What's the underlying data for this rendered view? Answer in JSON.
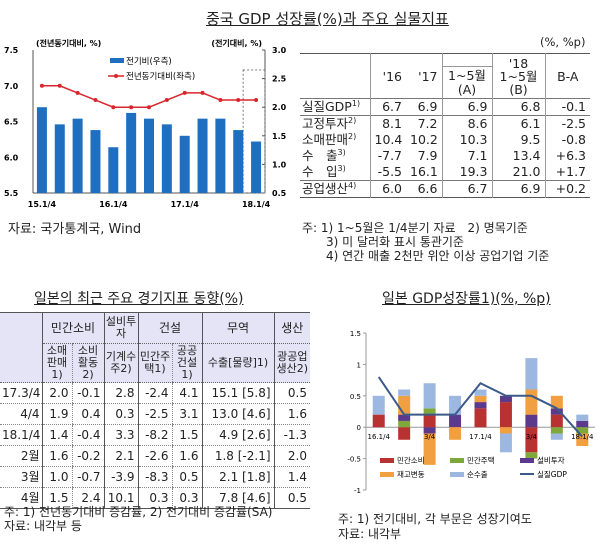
{
  "china": {
    "title": "중국 GDP 성장률(%)과 주요 실물지표",
    "source": "자료: 국가통계국, Wind",
    "chart_data": {
      "type": "bar+line",
      "left_unit": "(전년동기대비, %)",
      "right_unit": "(전기대비, %)",
      "legend": [
        "전기비(우측)",
        "전년동기대비(좌측)"
      ],
      "x_ticks": [
        "15.1/4",
        "16.1/4",
        "17.1/4",
        "18.1/4"
      ],
      "quarters": [
        "15.1/4",
        "15.2/4",
        "15.3/4",
        "15.4/4",
        "16.1/4",
        "16.2/4",
        "16.3/4",
        "16.4/4",
        "17.1/4",
        "17.2/4",
        "17.3/4",
        "17.4/4",
        "18.1/4"
      ],
      "yoy": [
        7.0,
        7.0,
        6.9,
        6.8,
        6.7,
        6.7,
        6.7,
        6.8,
        6.9,
        6.9,
        6.8,
        6.8,
        6.8
      ],
      "qoq": [
        2.0,
        1.7,
        1.8,
        1.6,
        1.3,
        1.9,
        1.8,
        1.7,
        1.5,
        1.8,
        1.8,
        1.6,
        1.4
      ],
      "left_ylim": [
        5.5,
        7.5
      ],
      "left_ticks": [
        "7.5",
        "7.0",
        "6.5",
        "6.0",
        "5.5"
      ],
      "right_ylim": [
        0.5,
        3.0
      ],
      "right_ticks": [
        "3.0",
        "2.5",
        "2.0",
        "1.5",
        "1.0",
        "0.5"
      ],
      "colors": {
        "bar": "#1f6fc0",
        "line": "#d9262c"
      }
    }
  },
  "china_table": {
    "unit": "(%, %p)",
    "headers": [
      "'16",
      "'17",
      "'18",
      "1~5월",
      "(A)",
      "1~5월",
      "(B)",
      "B-A"
    ],
    "rows": [
      {
        "label": "실질GDP",
        "sup": "1)",
        "v": [
          "6.7",
          "6.9",
          "6.9",
          "6.8",
          "-0.1"
        ]
      },
      {
        "label": "고정투자",
        "sup": "2)",
        "v": [
          "8.1",
          "7.2",
          "8.6",
          "6.1",
          "-2.5"
        ]
      },
      {
        "label": "소매판매",
        "sup": "2)",
        "v": [
          "10.4",
          "10.2",
          "10.3",
          "9.5",
          "-0.8"
        ]
      },
      {
        "label": "수　출",
        "sup": "3)",
        "v": [
          "-7.7",
          "7.9",
          "7.1",
          "13.4",
          "+6.3"
        ]
      },
      {
        "label": "수　입",
        "sup": "3)",
        "v": [
          "-5.5",
          "16.1",
          "19.3",
          "21.0",
          "+1.7"
        ]
      },
      {
        "label": "공업생산",
        "sup": "4)",
        "v": [
          "6.0",
          "6.6",
          "6.7",
          "6.9",
          "+0.2"
        ]
      }
    ],
    "notes": [
      "주: 1) 1~5월은 1/4분기 자료　2) 명목기준",
      "3) 미 달러화 표시 통관기준",
      "4) 연간 매출 2천만 위안 이상 공업기업 기준"
    ]
  },
  "japan_table": {
    "title": "일본의 최근 주요 경기지표 동향(%)",
    "groups": [
      "민간소비",
      "설비투자",
      "건설",
      "무역",
      "생산"
    ],
    "subs": [
      "소매판매1)",
      "소비활동2)",
      "기계수주2)",
      "민간주택1)",
      "공공건설1)",
      "수출[물량]1)",
      "광공업생산2)"
    ],
    "rows": [
      [
        "17.3/4",
        "2.0",
        "-0.1",
        "2.8",
        "-2.4",
        "4.1",
        "15.1 [5.8]",
        "0.5"
      ],
      [
        "4/4",
        "1.9",
        "0.4",
        "0.3",
        "-2.5",
        "3.1",
        "13.0 [4.6]",
        "1.6"
      ],
      [
        "18.1/4",
        "1.4",
        "-0.4",
        "3.3",
        "-8.2",
        "1.5",
        "4.9 [2.6]",
        "-1.3"
      ],
      [
        "2월",
        "1.6",
        "-0.2",
        "2.1",
        "-2.6",
        "1.6",
        "1.8 [-2.1]",
        "2.0"
      ],
      [
        "3월",
        "1.0",
        "-0.7",
        "-3.9",
        "-8.3",
        "0.5",
        "2.1 [1.8]",
        "1.4"
      ],
      [
        "4월",
        "1.5",
        "2.4",
        "10.1",
        "0.3",
        "0.3",
        "7.8 [4.6]",
        "0.5"
      ]
    ],
    "notes": [
      "주: 1) 전년동기대비 증감률, 2) 전기대비 증감률(SA)",
      "자료: 내각부 등"
    ]
  },
  "japan": {
    "title": "일본 GDP성장률1)(%, %p)",
    "notes": [
      "주: 1) 전기대비, 각 부문은 성장기여도",
      "자료: 내각부"
    ],
    "chart_data": {
      "type": "stacked-bar+line",
      "ylim": [
        -1,
        1.5
      ],
      "y_ticks": [
        "1.5",
        "1",
        "0.5",
        "0",
        "-0.5",
        "-1"
      ],
      "x_ticks": [
        "16.1/4",
        "3/4",
        "17.1/4",
        "3/4",
        "18.1/4"
      ],
      "series": [
        {
          "name": "민간소비",
          "color": "#b83232",
          "values": [
            0.2,
            -0.2,
            0.2,
            0,
            0.3,
            0.4,
            -0.4,
            0.2,
            0
          ]
        },
        {
          "name": "민간주택",
          "color": "#7fa83a",
          "values": [
            0,
            0.1,
            0.1,
            0,
            0,
            0,
            -0.1,
            -0.1,
            -0.1
          ]
        },
        {
          "name": "설비투자",
          "color": "#5b3a8c",
          "values": [
            0,
            0.1,
            -0.1,
            0.2,
            0.1,
            0.1,
            0.2,
            0.1,
            0.1
          ]
        },
        {
          "name": "재고변동",
          "color": "#f0a040",
          "values": [
            0,
            0.3,
            -0.5,
            -0.2,
            0.1,
            -0.1,
            0.4,
            0.2,
            -0.2
          ]
        },
        {
          "name": "순수출",
          "color": "#9db8e0",
          "values": [
            0.3,
            0.1,
            0.4,
            0.3,
            0.1,
            -0.3,
            0.5,
            -0.1,
            0.1
          ]
        }
      ],
      "line": {
        "name": "실질GDP",
        "color": "#3b5a8a",
        "values": [
          0.8,
          0.2,
          0.2,
          0.2,
          0.7,
          0.5,
          0.5,
          0.3,
          -0.15
        ]
      }
    }
  }
}
